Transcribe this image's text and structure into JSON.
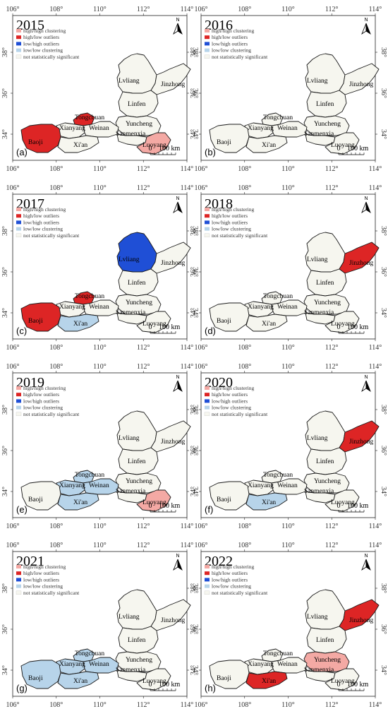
{
  "colors": {
    "high_high": "#f4a9a4",
    "high_low": "#dd2525",
    "low_high": "#1f4fd6",
    "low_low": "#b7d4ea",
    "not_significant": "#f6f6ef",
    "border": "#1a1a1a"
  },
  "legend": [
    {
      "key": "high_high",
      "label": "high/high clustering"
    },
    {
      "key": "high_low",
      "label": "high/low outliers"
    },
    {
      "key": "low_high",
      "label": "low/high outliers"
    },
    {
      "key": "low_low",
      "label": "low/low clustering"
    },
    {
      "key": "not_significant",
      "label": "not statistically significant"
    }
  ],
  "axis": {
    "lon_ticks": [
      "106°",
      "108°",
      "110°",
      "112°",
      "114°"
    ],
    "lat_ticks": [
      "38°",
      "36°",
      "34°"
    ]
  },
  "scale": {
    "zero": "0",
    "distance": "100 km"
  },
  "north_label": "N",
  "city_labels": {
    "lvliang": "Lvliang",
    "jinzhong": "Jinzhong",
    "linfen": "Linfen",
    "yuncheng": "Yuncheng",
    "tongchuan": "Tongchuan",
    "xianyang": "Xianyang",
    "weinan": "Weinan",
    "sanmenxia": "Sanmenxia",
    "baoji": "Baoji",
    "xian": "Xi'an",
    "luoyang": "Luoyang"
  },
  "panels": [
    {
      "year": "2015",
      "label": "(a)",
      "classes": {
        "baoji": "high_low",
        "tongchuan": "high_low",
        "luoyang": "high_high"
      }
    },
    {
      "year": "2016",
      "label": "(b)",
      "classes": {}
    },
    {
      "year": "2017",
      "label": "(c)",
      "classes": {
        "baoji": "high_low",
        "tongchuan": "high_low",
        "lvliang": "low_high",
        "xian": "low_low"
      }
    },
    {
      "year": "2018",
      "label": "(d)",
      "classes": {
        "jinzhong": "high_low"
      }
    },
    {
      "year": "2019",
      "label": "(e)",
      "classes": {
        "xianyang": "low_low",
        "weinan": "low_low",
        "tongchuan": "low_low",
        "xian": "low_low",
        "luoyang": "high_high"
      }
    },
    {
      "year": "2020",
      "label": "(f)",
      "classes": {
        "jinzhong": "high_low",
        "xian": "low_low"
      }
    },
    {
      "year": "2021",
      "label": "(g)",
      "classes": {
        "baoji": "low_low",
        "xianyang": "low_low",
        "weinan": "low_low",
        "tongchuan": "low_low",
        "xian": "low_low"
      }
    },
    {
      "year": "2022",
      "label": "(h)",
      "classes": {
        "jinzhong": "high_low",
        "xian": "high_low",
        "yuncheng": "high_high"
      }
    }
  ]
}
